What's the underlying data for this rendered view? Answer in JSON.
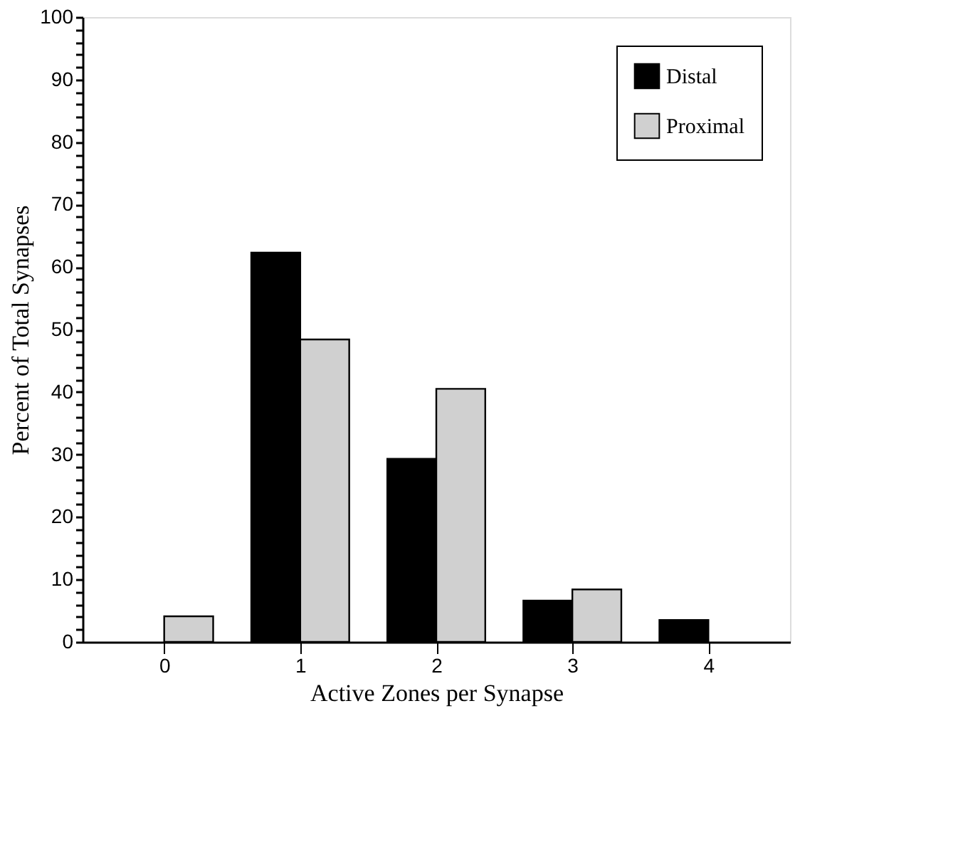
{
  "chart_data": {
    "type": "bar",
    "xlabel": "Active Zones per Synapse",
    "ylabel": "Percent of Total Synapses",
    "categories": [
      "0",
      "1",
      "2",
      "3",
      "4"
    ],
    "series": [
      {
        "name": "Distal",
        "color": "#000000",
        "values": [
          null,
          62.3,
          29.3,
          6.6,
          3.5
        ]
      },
      {
        "name": "Proximal",
        "color": "#d0d0d0",
        "values": [
          4.1,
          48.4,
          40.5,
          8.4,
          null
        ]
      }
    ],
    "ylim": [
      0,
      100
    ],
    "yticks": [
      0,
      {
        "value": 2,
        "label": null
      },
      {
        "value": 4,
        "label": null
      },
      {
        "value": 6,
        "label": null
      },
      {
        "value": 8,
        "label": null
      },
      10,
      {
        "value": 12,
        "label": null
      },
      {
        "value": 14,
        "label": null
      },
      {
        "value": 16,
        "label": null
      },
      {
        "value": 18,
        "label": null
      },
      20,
      {
        "value": 22,
        "label": null
      },
      {
        "value": 24,
        "label": null
      },
      {
        "value": 26,
        "label": null
      },
      {
        "value": 28,
        "label": null
      },
      30,
      {
        "value": 32,
        "label": null
      },
      {
        "value": 34,
        "label": null
      },
      {
        "value": 36,
        "label": null
      },
      {
        "value": 38,
        "label": null
      },
      40,
      {
        "value": 42,
        "label": null
      },
      {
        "value": 44,
        "label": null
      },
      {
        "value": 46,
        "label": null
      },
      {
        "value": 48,
        "label": null
      },
      50,
      {
        "value": 52,
        "label": null
      },
      {
        "value": 54,
        "label": null
      },
      {
        "value": 56,
        "label": null
      },
      {
        "value": 58,
        "label": null
      },
      60,
      {
        "value": 62,
        "label": null
      },
      {
        "value": 64,
        "label": null
      },
      {
        "value": 66,
        "label": null
      },
      {
        "value": 68,
        "label": null
      },
      70,
      {
        "value": 72,
        "label": null
      },
      {
        "value": 74,
        "label": null
      },
      {
        "value": 76,
        "label": null
      },
      {
        "value": 78,
        "label": null
      },
      80,
      {
        "value": 82,
        "label": null
      },
      {
        "value": 84,
        "label": null
      },
      {
        "value": 86,
        "label": null
      },
      {
        "value": 88,
        "label": null
      },
      90,
      {
        "value": 92,
        "label": null
      },
      {
        "value": 94,
        "label": null
      },
      {
        "value": 96,
        "label": null
      },
      {
        "value": 98,
        "label": null
      },
      100
    ],
    "grid": false,
    "legend": "top right"
  }
}
